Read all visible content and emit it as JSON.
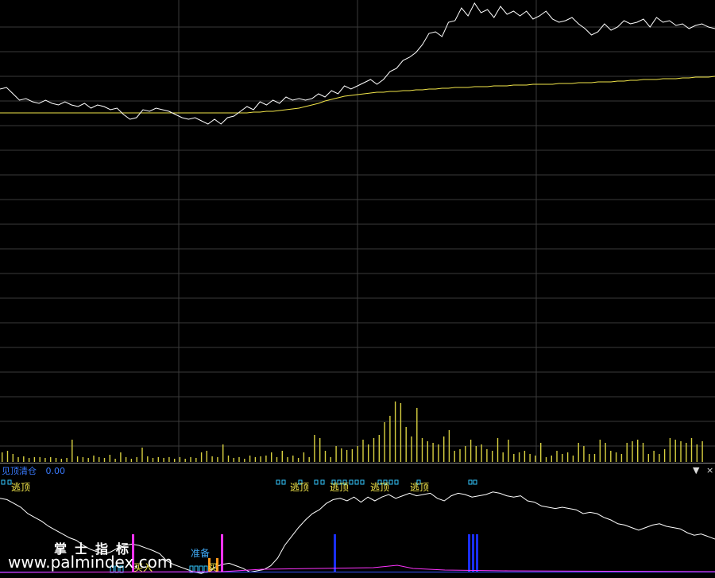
{
  "indicator": {
    "name": "见顶清仓",
    "value": "0.00"
  },
  "controls": {
    "dropdown_icon": "▼",
    "close_icon": "×"
  },
  "labels": {
    "top_signal": "逃顶",
    "buy_signal": "买入",
    "prepare_signal": "准备",
    "short_signal": "买"
  },
  "watermark": {
    "cn": "掌士指标",
    "url": "www.palmindex.com"
  },
  "colors": {
    "background": "#000000",
    "grid": "#3a3a3a",
    "price": "#ffffff",
    "average": "#f2e64a",
    "volume": "#d8d040",
    "signal_cyan": "#33c8ff",
    "signal_magenta": "#ff33ff",
    "signal_blue": "#1a2fff",
    "signal_orange": "#ff9a1a"
  },
  "chart_data": [
    {
      "type": "line",
      "series": [
        {
          "values": [
            112,
            110,
            118,
            126,
            124,
            128,
            130,
            126,
            130,
            132,
            128,
            132,
            134,
            130,
            136,
            132,
            134,
            138,
            136,
            144,
            150,
            148,
            138,
            140,
            136,
            138,
            140,
            144,
            148,
            150,
            148,
            152,
            156,
            150,
            156,
            148,
            146,
            140,
            134,
            138,
            128,
            132,
            126,
            130,
            122,
            126,
            124,
            126,
            124,
            118,
            122,
            114,
            118,
            108,
            112,
            108,
            104,
            100,
            106,
            100,
            90,
            86,
            76,
            72,
            66,
            56,
            42,
            40,
            46,
            28,
            26,
            10,
            20,
            4,
            16,
            12,
            22,
            8,
            18,
            14,
            20,
            14,
            24,
            20,
            14,
            24,
            28,
            26,
            22,
            30,
            36,
            44,
            40,
            30,
            38,
            34,
            26,
            30,
            28,
            24,
            34,
            22,
            28,
            26,
            32,
            30,
            36,
            32,
            30,
            34,
            36
          ]
        },
        {
          "values": [
            142,
            142,
            142,
            142,
            142,
            142,
            142,
            142,
            142,
            142,
            142,
            142,
            142,
            142,
            142,
            142,
            142,
            142,
            142,
            142,
            142,
            142,
            142,
            142,
            142,
            142,
            142,
            142,
            142,
            142,
            142,
            142,
            142,
            142,
            142,
            142,
            142,
            142,
            142,
            141,
            141,
            140,
            140,
            139,
            138,
            137,
            136,
            134,
            132,
            130,
            127,
            125,
            123,
            121,
            120,
            119,
            118,
            117,
            116,
            116,
            115,
            115,
            114,
            114,
            113,
            113,
            112,
            112,
            111,
            111,
            110,
            110,
            110,
            109,
            109,
            109,
            108,
            108,
            108,
            107,
            107,
            107,
            106,
            106,
            106,
            106,
            105,
            105,
            105,
            104,
            104,
            104,
            103,
            103,
            103,
            102,
            102,
            101,
            101,
            100,
            100,
            100,
            99,
            99,
            99,
            98,
            98,
            97,
            97,
            97,
            96
          ]
        }
      ]
    },
    {
      "type": "bar",
      "values": [
        12,
        14,
        10,
        6,
        7,
        5,
        6,
        6,
        5,
        6,
        5,
        4,
        5,
        28,
        7,
        6,
        5,
        8,
        6,
        5,
        9,
        4,
        12,
        6,
        4,
        6,
        18,
        7,
        5,
        6,
        5,
        6,
        4,
        6,
        4,
        6,
        5,
        12,
        14,
        7,
        6,
        22,
        8,
        5,
        6,
        4,
        8,
        6,
        7,
        8,
        12,
        6,
        14,
        6,
        8,
        5,
        12,
        6,
        34,
        30,
        14,
        6,
        20,
        17,
        15,
        16,
        20,
        28,
        22,
        30,
        34,
        50,
        58,
        76,
        74,
        44,
        32,
        68,
        30,
        26,
        24,
        22,
        32,
        40,
        14,
        16,
        20,
        28,
        20,
        22,
        16,
        14,
        30,
        12,
        28,
        10,
        12,
        14,
        10,
        8,
        24,
        6,
        8,
        14,
        10,
        12,
        8,
        24,
        20,
        10,
        10,
        28,
        24,
        14,
        12,
        10,
        24,
        26,
        28,
        24,
        10,
        14,
        10,
        16,
        30,
        28,
        26,
        24,
        30,
        22,
        26
      ]
    },
    {
      "type": "line",
      "series": [
        {
          "values": [
            16,
            18,
            24,
            30,
            40,
            46,
            52,
            60,
            66,
            72,
            78,
            82,
            90,
            96,
            100,
            104,
            100,
            94,
            90,
            88,
            90,
            94,
            98,
            103,
            114,
            120,
            124,
            128,
            132,
            134,
            131,
            124,
            120,
            118,
            122,
            126,
            132,
            130,
            128,
            122,
            110,
            90,
            76,
            62,
            50,
            40,
            34,
            24,
            18,
            16,
            20,
            14,
            22,
            14,
            20,
            14,
            10,
            16,
            12,
            8,
            12,
            10,
            8,
            16,
            20,
            12,
            8,
            10,
            14,
            12,
            10,
            6,
            8,
            12,
            14,
            12,
            20,
            22,
            28,
            30,
            32,
            30,
            32,
            34,
            40,
            38,
            40,
            46,
            50,
            56,
            58,
            62,
            66,
            62,
            58,
            56,
            60,
            62,
            64,
            70,
            74,
            72,
            76,
            80
          ]
        }
      ]
    }
  ]
}
